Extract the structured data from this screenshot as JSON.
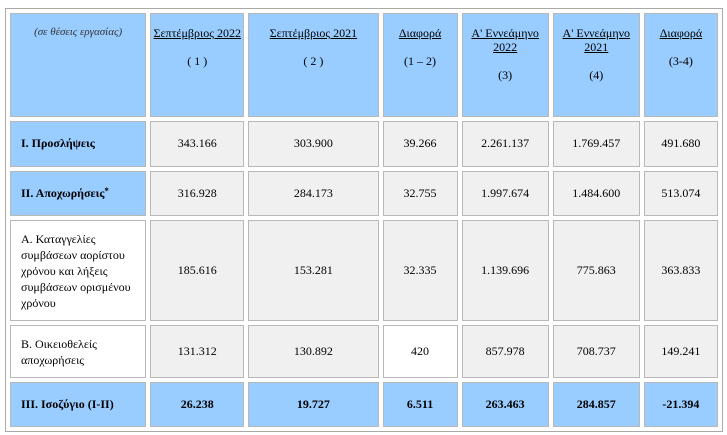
{
  "table": {
    "corner": "(σε θέσεις εργασίας)",
    "headers": [
      {
        "title": "Σεπτέμβριος 2022",
        "note": "( 1 )"
      },
      {
        "title": "Σεπτέμβριος 2021",
        "note": "( 2 )"
      },
      {
        "title": "Διαφορά",
        "note": "(1 – 2)"
      },
      {
        "title": "Α' Εννεάμηνο 2022",
        "note": "(3)"
      },
      {
        "title": "Α' Εννεάμηνο 2021",
        "note": "(4)"
      },
      {
        "title": "Διαφορά",
        "note": "(3-4)"
      }
    ],
    "rows": [
      {
        "label": "Ι. Προσλήψεις",
        "values": [
          "343.166",
          "303.900",
          "39.266",
          "2.261.137",
          "1.769.457",
          "491.680"
        ]
      },
      {
        "label": "ΙΙ. Αποχωρήσεις",
        "mark": "*",
        "values": [
          "316.928",
          "284.173",
          "32.755",
          "1.997.674",
          "1.484.600",
          "513.074"
        ]
      },
      {
        "label": "Α. Καταγγελίες συμβάσεων αορίστου χρόνου και λήξεις συμβάσεων ορισμένου χρόνου",
        "values": [
          "185.616",
          "153.281",
          "32.335",
          "1.139.696",
          "775.863",
          "363.833"
        ]
      },
      {
        "label": "Β. Οικειοθελείς αποχωρήσεις",
        "values": [
          "131.312",
          "130.892",
          "420",
          "857.978",
          "708.737",
          "149.241"
        ]
      },
      {
        "label": "ΙΙΙ. Ισοζύγιο (Ι-ΙΙ)",
        "values": [
          "26.238",
          "19.727",
          "6.511",
          "263.463",
          "284.857",
          "-21.394"
        ]
      }
    ]
  }
}
